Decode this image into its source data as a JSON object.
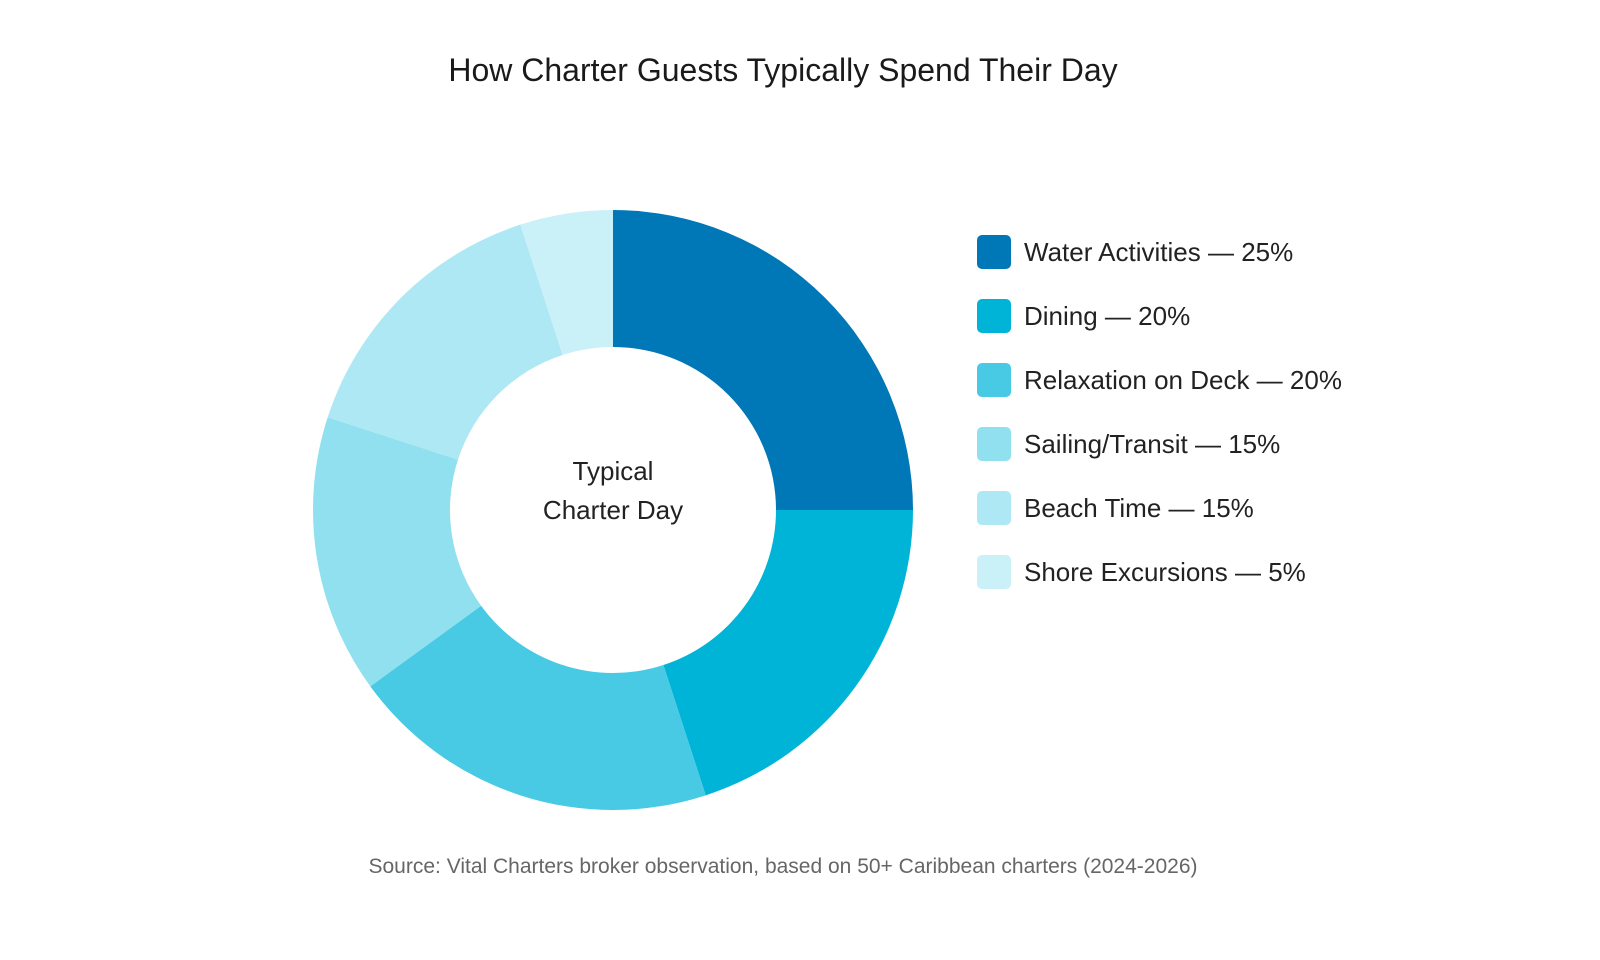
{
  "chart_data": {
    "type": "pie",
    "variant": "donut",
    "title": "How Charter Guests Typically Spend Their Day",
    "center_label": [
      "Typical",
      "Charter Day"
    ],
    "categories": [
      "Water Activities",
      "Dining",
      "Relaxation on Deck",
      "Sailing/Transit",
      "Beach Time",
      "Shore Excursions"
    ],
    "values": [
      25,
      20,
      20,
      15,
      15,
      5
    ],
    "unit": "%",
    "colors": [
      "#0077b6",
      "#00b4d8",
      "#48cae4",
      "#90e0ef",
      "#ade8f4",
      "#caf0f8"
    ],
    "legend_labels": [
      "Water Activities — 25%",
      "Dining — 20%",
      "Relaxation on Deck — 20%",
      "Sailing/Transit — 15%",
      "Beach Time — 15%",
      "Shore Excursions — 5%"
    ],
    "legend_position": "right",
    "source": "Source: Vital Charters broker observation, based on 50+ Caribbean charters (2024-2026)"
  }
}
